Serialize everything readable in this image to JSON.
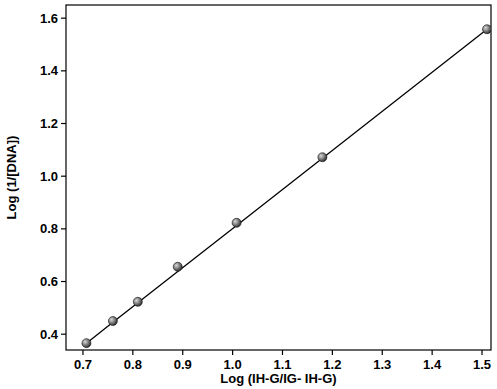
{
  "chart_data": {
    "type": "scatter",
    "x_label": "Log (IH-G/IG- IH-G)",
    "y_label": "Log (1/[DNA])",
    "x": [
      0.707,
      0.76,
      0.81,
      0.89,
      1.008,
      1.18,
      1.51
    ],
    "series": [
      {
        "type": "scatter",
        "color": "#333333",
        "marker": "circle",
        "values": [
          0.366,
          0.45,
          0.523,
          0.656,
          0.823,
          1.072,
          1.558
        ]
      },
      {
        "type": "line",
        "color": "#000000",
        "line_style": "solid",
        "values": [
          0.366,
          0.445,
          0.519,
          0.638,
          0.813,
          1.068,
          1.558
        ]
      }
    ],
    "xlim": [
      0.666,
      1.518
    ],
    "ylim": [
      0.34,
      1.65
    ],
    "xticks": [
      0.7,
      0.8,
      0.9,
      {
        "value": 1,
        "label": "1.0"
      },
      1.1,
      1.2,
      1.3,
      1.4,
      1.5
    ],
    "yticks": [
      0.4,
      0.6,
      0.8,
      {
        "value": 1,
        "label": "1.0"
      },
      1.2,
      1.4,
      1.6
    ],
    "grid": false
  }
}
